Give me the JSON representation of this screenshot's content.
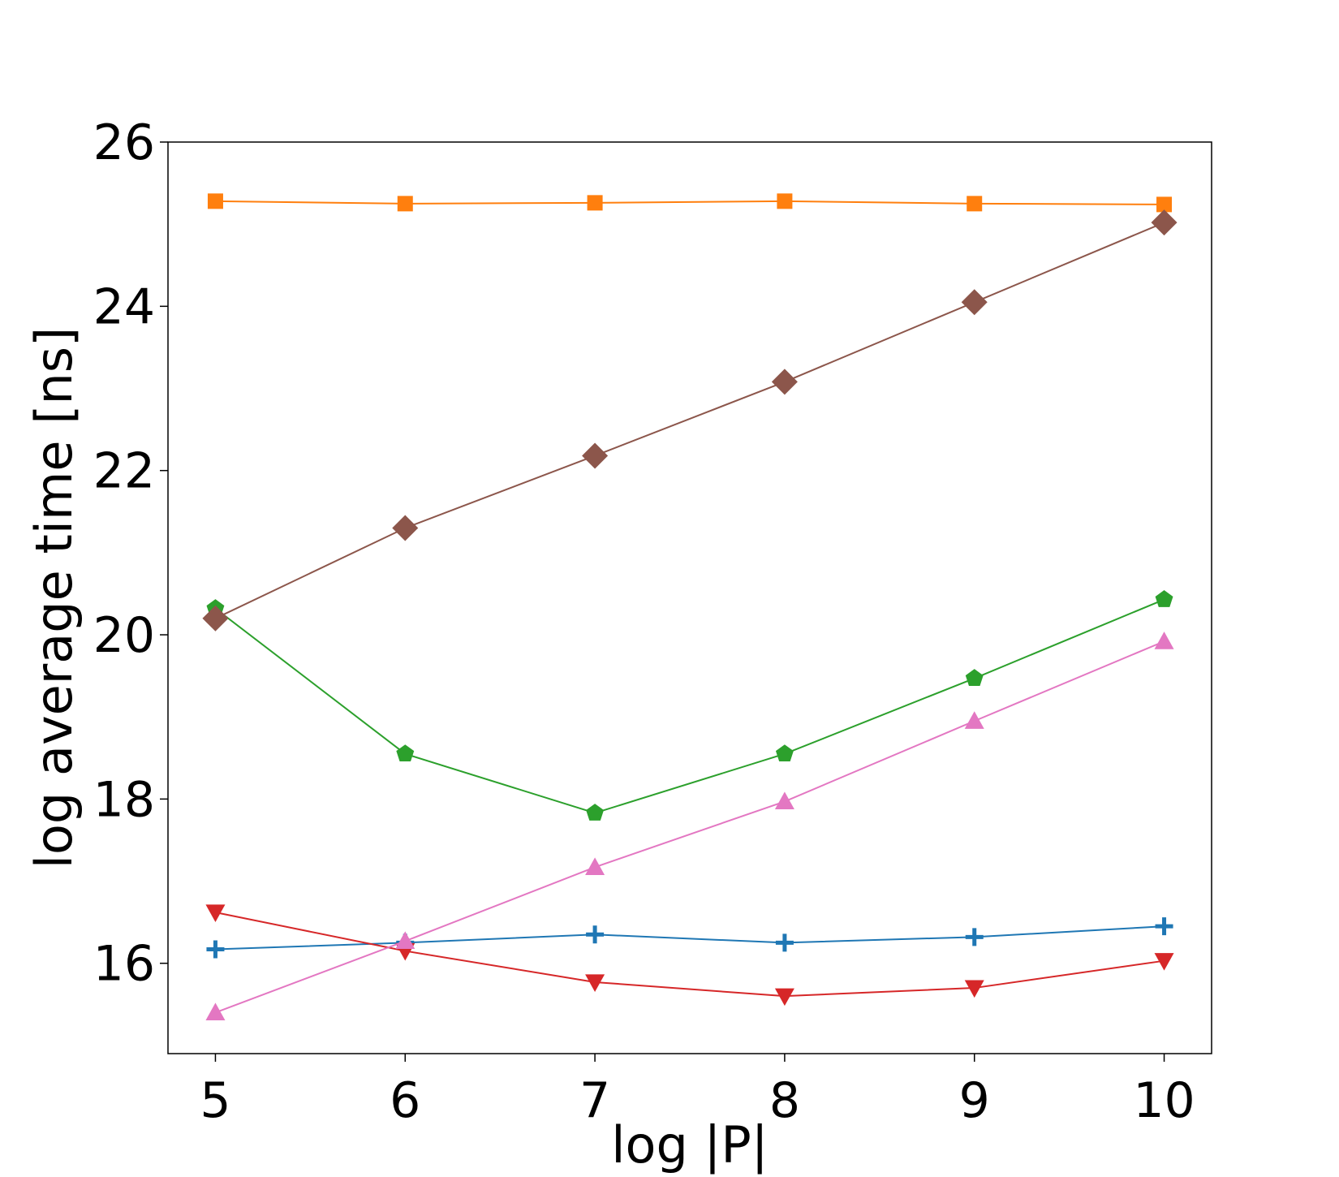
{
  "chart_data": {
    "type": "line",
    "title": "",
    "xlabel": "log |P|",
    "ylabel": "log average time [ns]",
    "x": [
      5,
      6,
      7,
      8,
      9,
      10
    ],
    "xlim": [
      4.75,
      10.25
    ],
    "ylim": [
      14.9,
      26
    ],
    "xticks": [
      5,
      6,
      7,
      8,
      9,
      10
    ],
    "yticks": [
      16,
      18,
      20,
      22,
      24,
      26
    ],
    "grid": false,
    "legend": "none",
    "series": [
      {
        "color": "#1f77b4",
        "marker": "plus",
        "values": [
          16.17,
          16.25,
          16.35,
          16.25,
          16.32,
          16.45
        ]
      },
      {
        "color": "#ff7f0e",
        "marker": "square",
        "values": [
          25.28,
          25.25,
          25.26,
          25.28,
          25.25,
          25.24
        ]
      },
      {
        "color": "#2ca02c",
        "marker": "pentagon",
        "values": [
          20.32,
          18.55,
          17.83,
          18.55,
          19.47,
          20.43
        ]
      },
      {
        "color": "#d62728",
        "marker": "triangle-down",
        "values": [
          16.62,
          16.15,
          15.77,
          15.6,
          15.7,
          16.03
        ]
      },
      {
        "color": "#8c564b",
        "marker": "diamond",
        "values": [
          20.2,
          21.3,
          22.18,
          23.08,
          24.05,
          25.02
        ]
      },
      {
        "color": "#e377c2",
        "marker": "triangle-up",
        "values": [
          15.4,
          16.27,
          17.17,
          17.97,
          18.95,
          19.92
        ]
      }
    ]
  }
}
